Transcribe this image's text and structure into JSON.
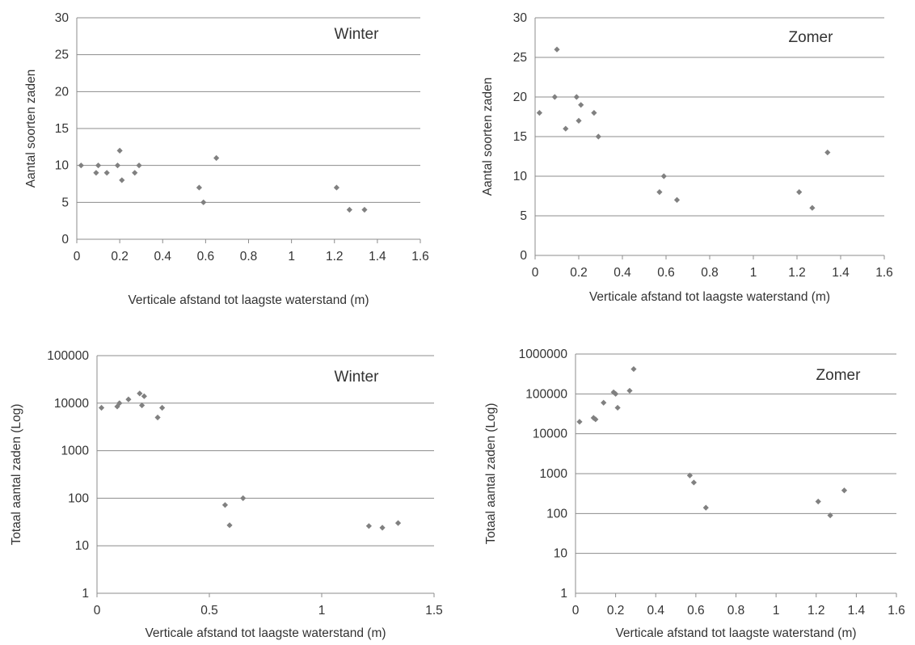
{
  "chart_data": [
    {
      "type": "scatter",
      "title": "Winter",
      "xlabel": "Verticale afstand tot laagste waterstand (m)",
      "ylabel": "Aantal soorten zaden",
      "xlim": [
        0,
        1.6
      ],
      "ylim": [
        0,
        30
      ],
      "xticks": [
        "0",
        "0.2",
        "0.4",
        "0.6",
        "0.8",
        "1",
        "1.2",
        "1.4",
        "1.6"
      ],
      "yticks": [
        "0",
        "5",
        "10",
        "15",
        "20",
        "25",
        "30"
      ],
      "y_scale": "linear",
      "grid": "horizontal",
      "points": [
        [
          0.02,
          10
        ],
        [
          0.09,
          9
        ],
        [
          0.1,
          10
        ],
        [
          0.14,
          9
        ],
        [
          0.19,
          10
        ],
        [
          0.2,
          12
        ],
        [
          0.21,
          8
        ],
        [
          0.27,
          9
        ],
        [
          0.29,
          10
        ],
        [
          0.57,
          7
        ],
        [
          0.59,
          5
        ],
        [
          0.65,
          11
        ],
        [
          1.21,
          7
        ],
        [
          1.27,
          4
        ],
        [
          1.34,
          4
        ]
      ],
      "marker_color": "#808080"
    },
    {
      "type": "scatter",
      "title": "Zomer",
      "xlabel": "Verticale afstand tot laagste waterstand (m)",
      "ylabel": "Aantal soorten zaden",
      "xlim": [
        0,
        1.6
      ],
      "ylim": [
        0,
        30
      ],
      "xticks": [
        "0",
        "0.2",
        "0.4",
        "0.6",
        "0.8",
        "1",
        "1.2",
        "1.4",
        "1.6"
      ],
      "yticks": [
        "0",
        "5",
        "10",
        "15",
        "20",
        "25",
        "30"
      ],
      "y_scale": "linear",
      "grid": "horizontal",
      "points": [
        [
          0.02,
          18
        ],
        [
          0.09,
          20
        ],
        [
          0.1,
          26
        ],
        [
          0.14,
          16
        ],
        [
          0.19,
          20
        ],
        [
          0.2,
          17
        ],
        [
          0.21,
          19
        ],
        [
          0.27,
          18
        ],
        [
          0.29,
          15
        ],
        [
          0.57,
          8
        ],
        [
          0.59,
          10
        ],
        [
          0.65,
          7
        ],
        [
          1.21,
          8
        ],
        [
          1.27,
          6
        ],
        [
          1.34,
          13
        ]
      ],
      "marker_color": "#808080"
    },
    {
      "type": "scatter",
      "title": "Winter",
      "xlabel": "Verticale afstand tot laagste waterstand (m)",
      "ylabel": "Totaal aantal zaden (Log)",
      "xlim": [
        0,
        1.5
      ],
      "ylim": [
        1,
        100000
      ],
      "xticks": [
        "0",
        "0.5",
        "1",
        "1.5"
      ],
      "yticks": [
        "1",
        "10",
        "100",
        "1000",
        "10000",
        "100000"
      ],
      "y_scale": "log",
      "grid": "horizontal",
      "points": [
        [
          0.02,
          8000
        ],
        [
          0.09,
          8500
        ],
        [
          0.1,
          10000
        ],
        [
          0.14,
          12000
        ],
        [
          0.19,
          16000
        ],
        [
          0.2,
          9000
        ],
        [
          0.21,
          14000
        ],
        [
          0.27,
          5000
        ],
        [
          0.29,
          8000
        ],
        [
          0.57,
          72
        ],
        [
          0.59,
          27
        ],
        [
          0.65,
          100
        ],
        [
          1.21,
          26
        ],
        [
          1.27,
          24
        ],
        [
          1.34,
          30
        ]
      ],
      "marker_color": "#808080"
    },
    {
      "type": "scatter",
      "title": "Zomer",
      "xlabel": "Verticale afstand tot laagste waterstand (m)",
      "ylabel": "Totaal aantal zaden (Log)",
      "xlim": [
        0,
        1.6
      ],
      "ylim": [
        1,
        1000000
      ],
      "xticks": [
        "0",
        "0.2",
        "0.4",
        "0.6",
        "0.8",
        "1",
        "1.2",
        "1.4",
        "1.6"
      ],
      "yticks": [
        "1",
        "10",
        "100",
        "1000",
        "10000",
        "100000",
        "1000000"
      ],
      "y_scale": "log",
      "grid": "horizontal",
      "points": [
        [
          0.02,
          20000
        ],
        [
          0.09,
          25000
        ],
        [
          0.1,
          23000
        ],
        [
          0.14,
          60000
        ],
        [
          0.19,
          110000
        ],
        [
          0.2,
          100000
        ],
        [
          0.21,
          45000
        ],
        [
          0.27,
          120000
        ],
        [
          0.29,
          420000
        ],
        [
          0.57,
          900
        ],
        [
          0.59,
          600
        ],
        [
          0.65,
          140
        ],
        [
          1.21,
          200
        ],
        [
          1.27,
          90
        ],
        [
          1.34,
          380
        ]
      ],
      "marker_color": "#808080"
    }
  ]
}
